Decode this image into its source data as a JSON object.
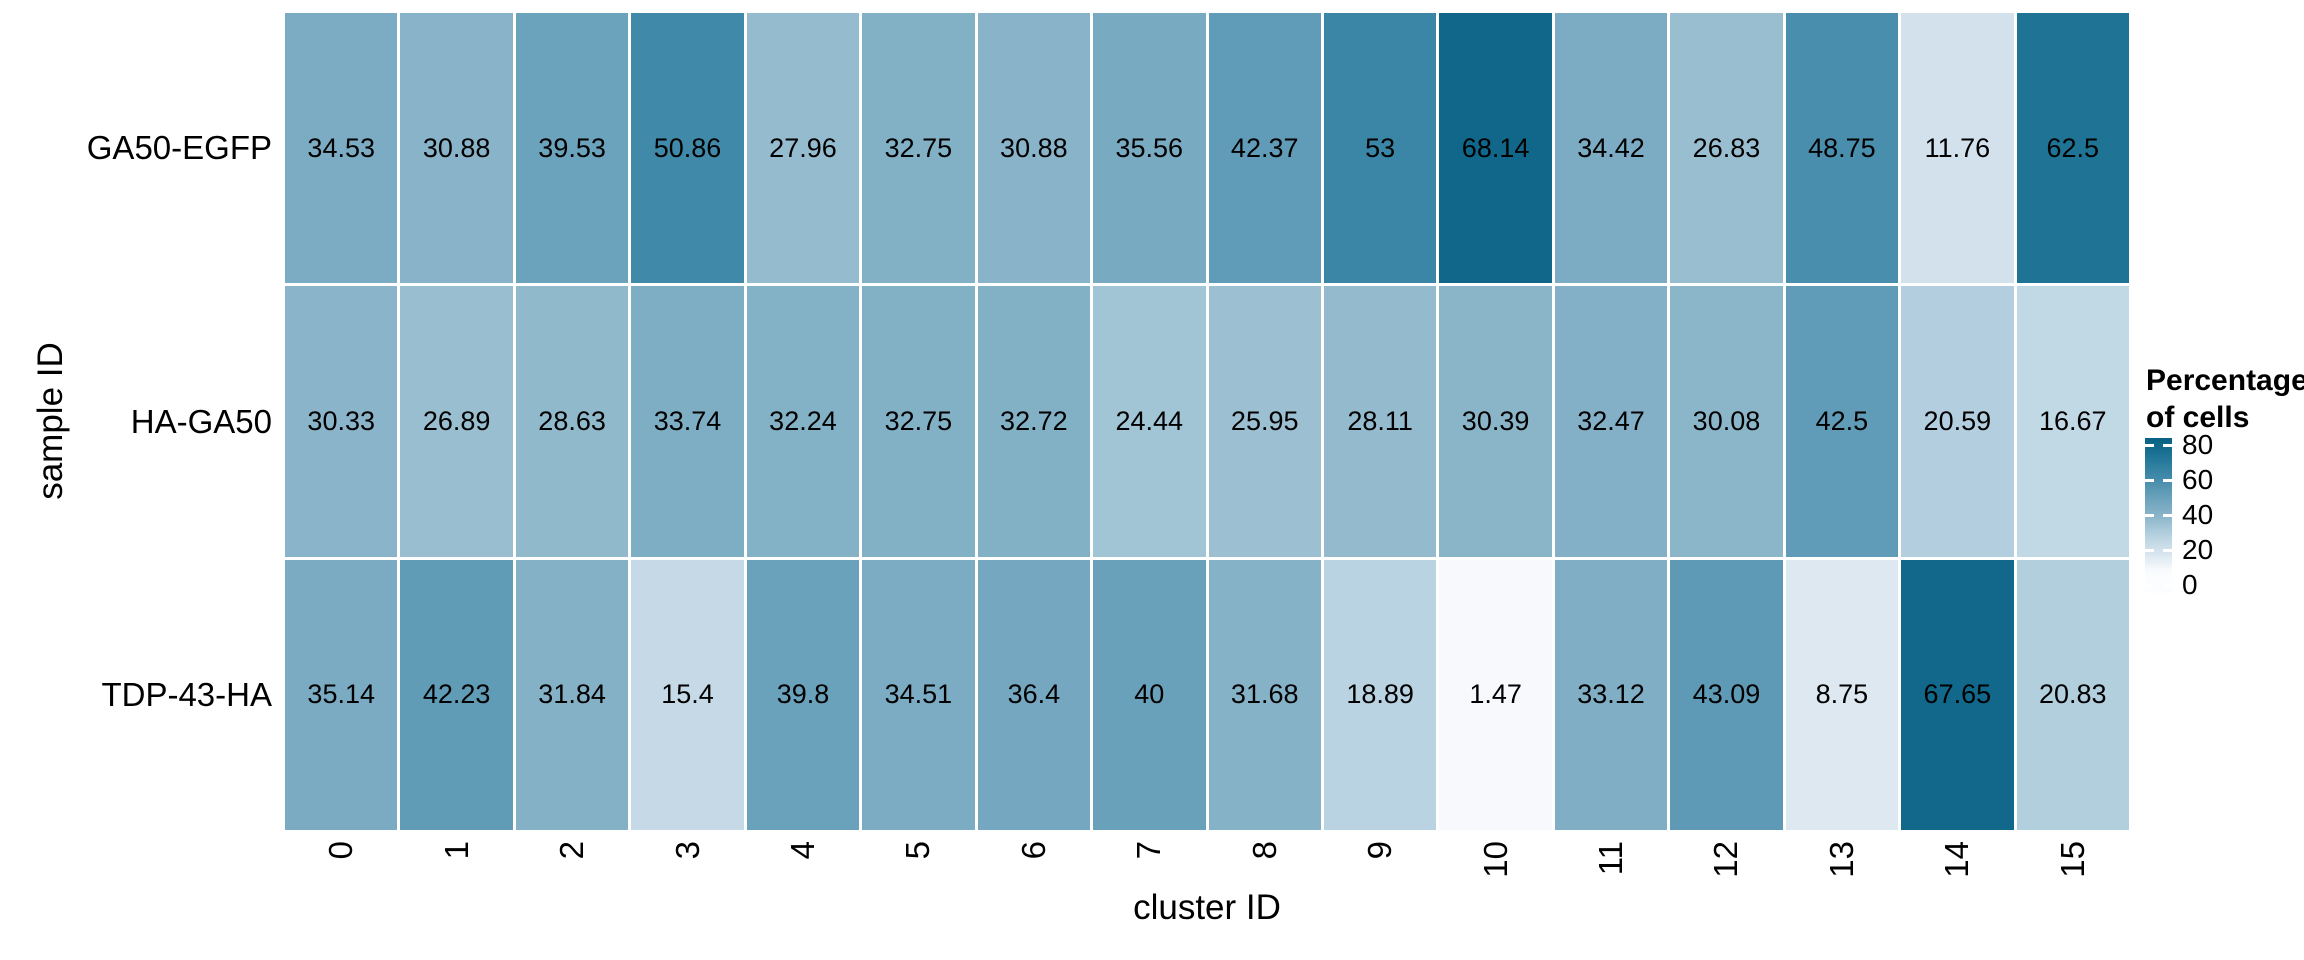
{
  "chart_data": {
    "type": "heatmap",
    "title": "",
    "xlabel": "cluster ID",
    "ylabel": "sample ID",
    "x_categories": [
      "0",
      "1",
      "2",
      "3",
      "4",
      "5",
      "6",
      "7",
      "8",
      "9",
      "10",
      "11",
      "12",
      "13",
      "14",
      "15"
    ],
    "y_categories": [
      "GA50-EGFP",
      "HA-GA50",
      "TDP-43-HA"
    ],
    "values": [
      [
        "34.53",
        "30.88",
        "39.53",
        "50.86",
        "27.96",
        "32.75",
        "30.88",
        "35.56",
        "42.37",
        "53",
        "68.14",
        "34.42",
        "26.83",
        "48.75",
        "11.76",
        "62.5"
      ],
      [
        "30.33",
        "26.89",
        "28.63",
        "33.74",
        "32.24",
        "32.75",
        "32.72",
        "24.44",
        "25.95",
        "28.11",
        "30.39",
        "32.47",
        "30.08",
        "42.5",
        "20.59",
        "16.67"
      ],
      [
        "35.14",
        "42.23",
        "31.84",
        "15.4",
        "39.8",
        "34.51",
        "36.4",
        "40",
        "31.68",
        "18.89",
        "1.47",
        "33.12",
        "43.09",
        "8.75",
        "67.65",
        "20.83"
      ]
    ],
    "legend": {
      "title_line1": "Percentage",
      "title_line2": "of cells",
      "tick_labels": [
        "80",
        "60",
        "40",
        "20",
        "0"
      ],
      "tick_values": [
        80,
        60,
        40,
        20,
        0
      ],
      "position": "right"
    },
    "colormap": {
      "description": "white to dark teal-blue sequential scale",
      "anchors": [
        [
          0,
          "#fcfdff"
        ],
        [
          10,
          "#d8e5ee"
        ],
        [
          20,
          "#b5d1e0"
        ],
        [
          30,
          "#8bb5c9"
        ],
        [
          40,
          "#69a1bb"
        ],
        [
          50,
          "#448baa"
        ],
        [
          60,
          "#25799b"
        ],
        [
          70,
          "#0b6385"
        ],
        [
          80,
          "#045c7c"
        ]
      ]
    },
    "grid": "white gaps between tiles",
    "background_color": "#ffffff",
    "value_text_color": "#000000",
    "axis_ranges": {
      "columns": 16,
      "rows": 3
    }
  }
}
